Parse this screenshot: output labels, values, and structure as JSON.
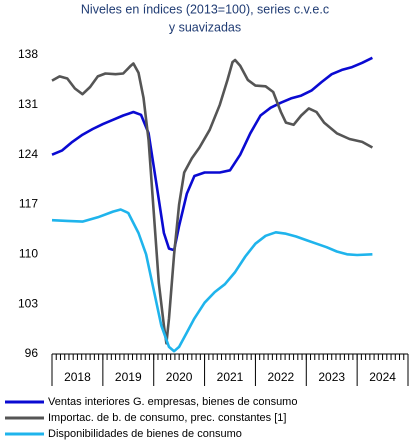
{
  "chart_data": {
    "type": "line",
    "title": [
      "Niveles en índices (2013=100), series c.v.e.c",
      "y suavizadas"
    ],
    "xlim": [
      2018,
      2025
    ],
    "xticks": [
      2018,
      2019,
      2020,
      2021,
      2022,
      2023,
      2024,
      2025
    ],
    "year_labels": [
      "2018",
      "2019",
      "2020",
      "2021",
      "2022",
      "2023",
      "2024"
    ],
    "ylim": [
      96,
      138
    ],
    "yticks": [
      96,
      103,
      110,
      117,
      124,
      131,
      138
    ],
    "series": [
      {
        "name": "Ventas interiores G. empresas, bienes de consumo",
        "color": "#0a0ad2",
        "x": [
          2018.0,
          2018.2,
          2018.4,
          2018.6,
          2018.8,
          2019.0,
          2019.2,
          2019.4,
          2019.6,
          2019.75,
          2019.9,
          2020.05,
          2020.2,
          2020.3,
          2020.4,
          2020.5,
          2020.65,
          2020.8,
          2021.0,
          2021.3,
          2021.5,
          2021.7,
          2021.9,
          2022.1,
          2022.3,
          2022.5,
          2022.7,
          2022.9,
          2023.1,
          2023.3,
          2023.5,
          2023.7,
          2023.9,
          2024.1,
          2024.3
        ],
        "values": [
          124,
          124.6,
          125.8,
          126.8,
          127.6,
          128.3,
          128.9,
          129.5,
          130,
          129.6,
          127,
          120,
          113,
          110.8,
          110.6,
          114,
          118.5,
          121,
          121.5,
          121.5,
          121.8,
          124,
          127,
          129.5,
          130.6,
          131.3,
          131.9,
          132.3,
          133,
          134.2,
          135.3,
          135.9,
          136.3,
          136.9,
          137.6
        ]
      },
      {
        "name": "Importac. de b. de consumo, prec. constantes [1]",
        "color": "#555555",
        "x": [
          2018.0,
          2018.15,
          2018.3,
          2018.45,
          2018.6,
          2018.75,
          2018.9,
          2019.05,
          2019.25,
          2019.4,
          2019.55,
          2019.6,
          2019.7,
          2019.8,
          2019.9,
          2020.0,
          2020.1,
          2020.2,
          2020.25,
          2020.3,
          2020.4,
          2020.5,
          2020.6,
          2020.75,
          2020.9,
          2021.1,
          2021.3,
          2021.45,
          2021.55,
          2021.6,
          2021.7,
          2021.85,
          2022.0,
          2022.2,
          2022.35,
          2022.5,
          2022.6,
          2022.75,
          2022.9,
          2023.05,
          2023.2,
          2023.35,
          2023.6,
          2023.85,
          2024.1,
          2024.3
        ],
        "values": [
          134.4,
          135,
          134.7,
          133.3,
          132.5,
          133.5,
          135,
          135.4,
          135.3,
          135.4,
          136.5,
          136.8,
          135.5,
          132,
          126,
          116,
          106,
          100,
          97.5,
          101,
          110,
          117,
          121.5,
          123.5,
          125,
          127.5,
          131,
          134.5,
          137,
          137.3,
          136.5,
          134.5,
          133.7,
          133.6,
          132.8,
          130,
          128.5,
          128.2,
          129.5,
          130.5,
          130,
          128.5,
          127,
          126.2,
          125.8,
          125
        ]
      },
      {
        "name": "Disponibilidades de bienes de consumo",
        "color": "#1fb4ec",
        "x": [
          2018.0,
          2018.3,
          2018.6,
          2018.9,
          2019.2,
          2019.35,
          2019.5,
          2019.7,
          2019.85,
          2020.0,
          2020.15,
          2020.3,
          2020.4,
          2020.5,
          2020.65,
          2020.8,
          2021.0,
          2021.2,
          2021.4,
          2021.6,
          2021.8,
          2022.0,
          2022.2,
          2022.4,
          2022.6,
          2022.8,
          2023.0,
          2023.2,
          2023.4,
          2023.6,
          2023.8,
          2024.0,
          2024.3
        ],
        "values": [
          114.8,
          114.7,
          114.6,
          115.2,
          116,
          116.3,
          115.8,
          113,
          110,
          105,
          100,
          97,
          96.4,
          97,
          99,
          101,
          103.2,
          104.7,
          105.8,
          107.5,
          109.7,
          111.5,
          112.6,
          113.1,
          112.9,
          112.5,
          112,
          111.5,
          111,
          110.4,
          110,
          109.9,
          110
        ]
      }
    ]
  }
}
